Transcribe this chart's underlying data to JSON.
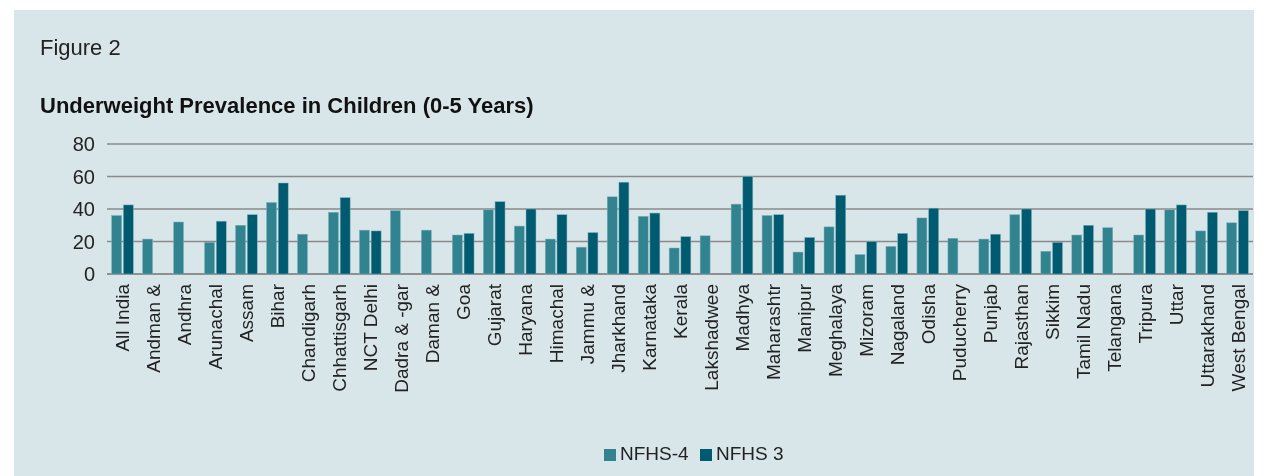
{
  "chart_data": {
    "type": "bar",
    "title": "Underweight Prevalence in Children (0-5 Years)",
    "annotations": [
      "Figure 2"
    ],
    "categories": [
      "All India",
      "Andman &",
      "Andhra",
      "Arunachal",
      "Assam",
      "Bihar",
      "Chandigarh",
      "Chhattisgarh",
      "NCT Delhi",
      "Dadra & -gar",
      "Daman &",
      "Goa",
      "Gujarat",
      "Haryana",
      "Himachal",
      "Jammu &",
      "Jharkhand",
      "Karnataka",
      "Kerala",
      "Lakshadwee",
      "Madhya",
      "Maharashtr",
      "Manipur",
      "Meghalaya",
      "Mizoram",
      "Nagaland",
      "Odisha",
      "Puducherry",
      "Punjab",
      "Rajasthan",
      "Sikkim",
      "Tamil Nadu",
      "Telangana",
      "Tripura",
      "Uttar",
      "Uttarakhand",
      "West Bengal"
    ],
    "series": [
      {
        "name": "NFHS-4",
        "color": "#31838f",
        "values": [
          36,
          21.5,
          32,
          19.5,
          30,
          44,
          24.5,
          38,
          27,
          39,
          27,
          24,
          39.5,
          29.5,
          21.5,
          16.5,
          47.5,
          35.5,
          16,
          23.5,
          43,
          36,
          13.5,
          29,
          12,
          17,
          34.5,
          22,
          21.5,
          36.5,
          14,
          24,
          28.5,
          24,
          39.5,
          26.5,
          31.5
        ]
      },
      {
        "name": "NFHS 3",
        "color": "#005b70",
        "values": [
          42.5,
          null,
          null,
          32.5,
          36.5,
          56,
          null,
          47,
          26.5,
          null,
          null,
          25,
          44.5,
          40,
          36.5,
          25.5,
          56.5,
          37.5,
          23,
          null,
          60,
          36.5,
          22.5,
          48.5,
          20,
          25,
          40.5,
          null,
          24.5,
          40,
          19.5,
          30,
          null,
          40,
          42.5,
          38,
          39
        ]
      }
    ],
    "ylim": [
      0,
      80
    ],
    "yticks": [
      0,
      20,
      40,
      60,
      80
    ],
    "grid": "y",
    "legend": "bottom"
  }
}
